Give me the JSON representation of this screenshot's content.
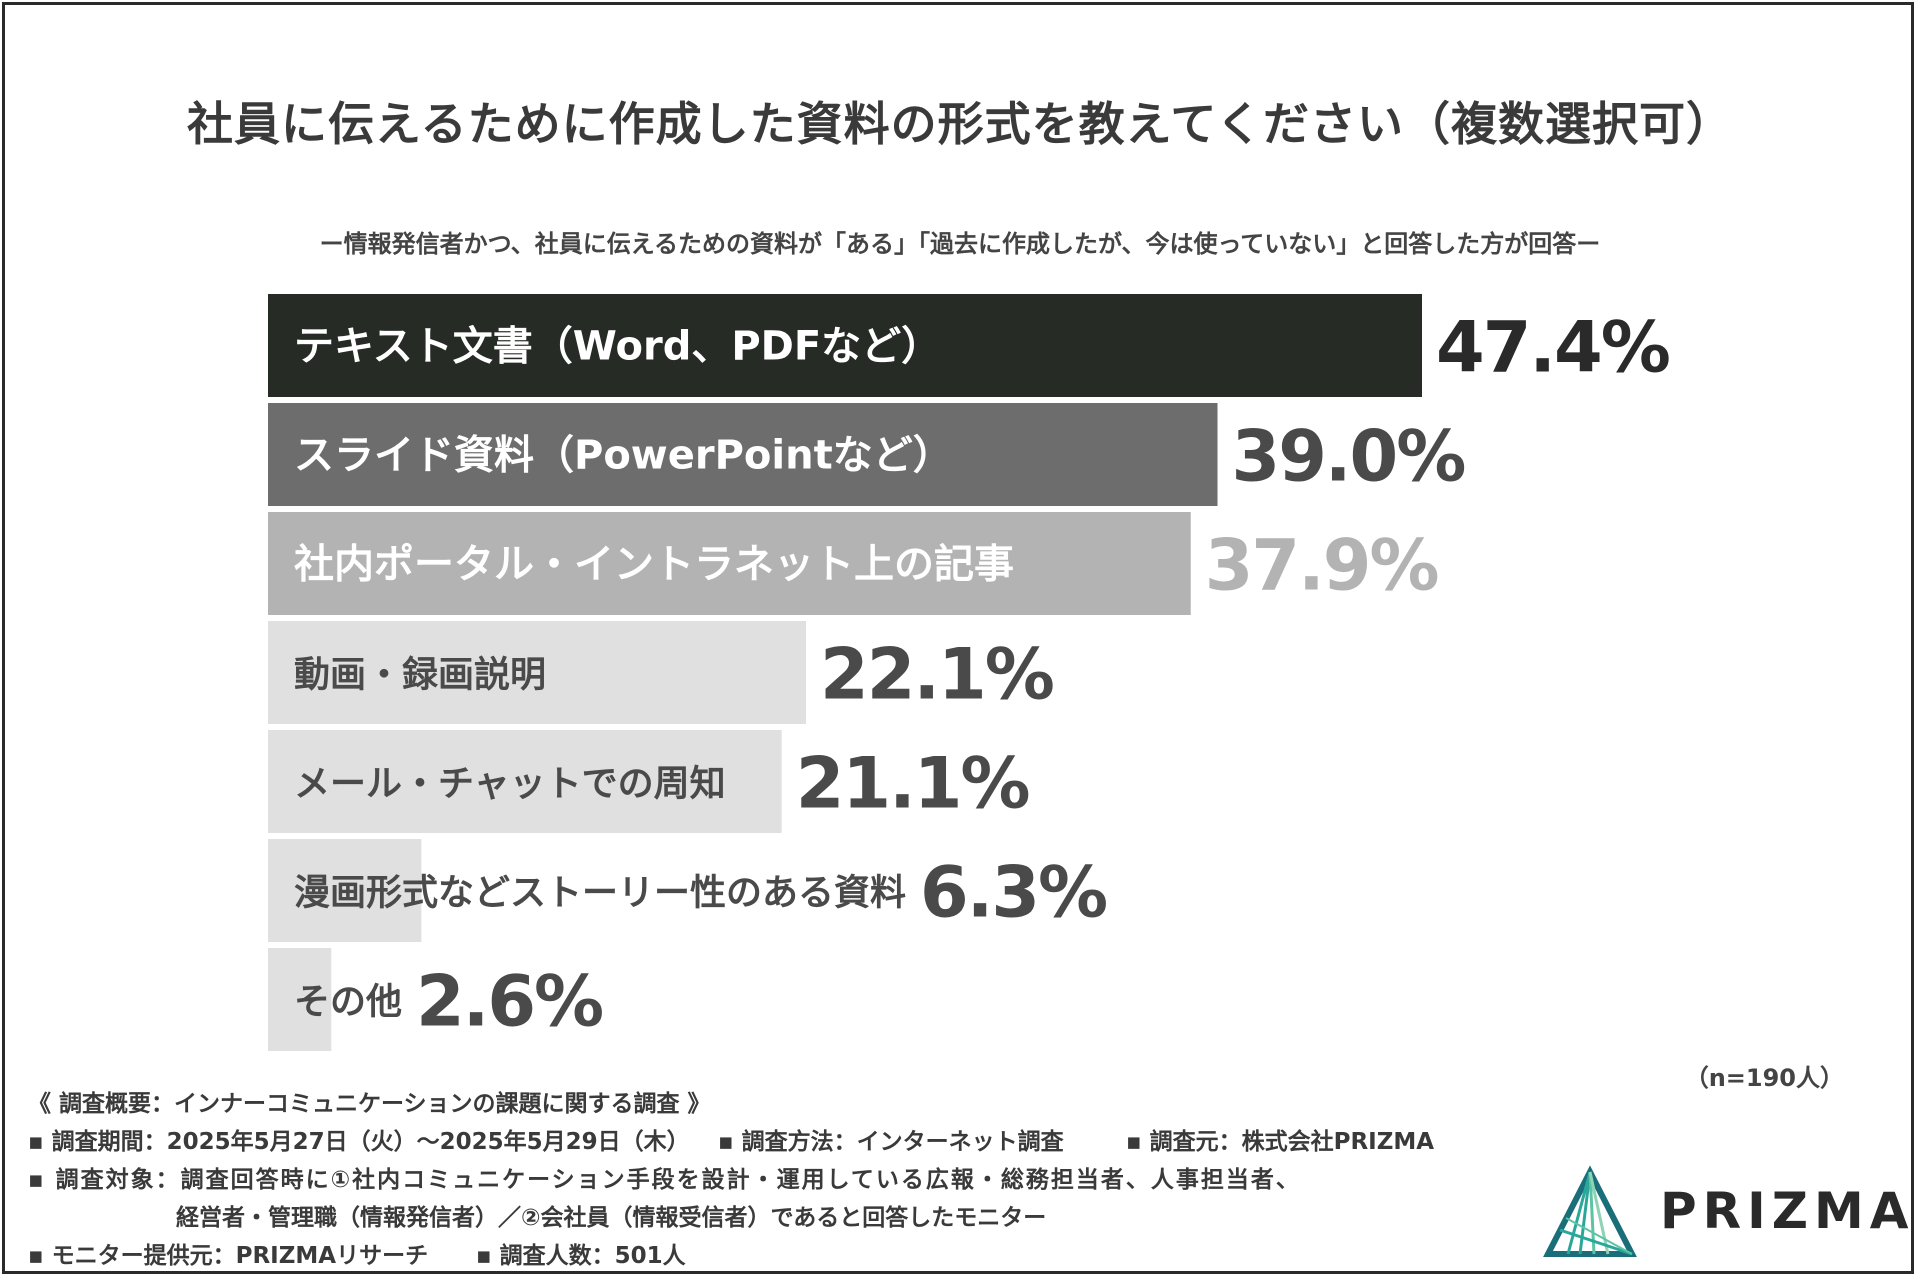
{
  "title": "社員に伝えるために作成した資料の形式を教えてください（複数選択可）",
  "subtitle": "ー情報発信者かつ、社員に伝えるための資料が「ある」「過去に作成したが、今は使っていない」と回答した方が回答ー",
  "n_label": "（n=190人）",
  "chart_data": {
    "type": "bar",
    "orientation": "horizontal",
    "categories": [
      "テキスト文書（Word、PDFなど）",
      "スライド資料（PowerPointなど）",
      "社内ポータル・イントラネット上の記事",
      "動画・録画説明",
      "メール・チャットでの周知",
      "漫画形式などストーリー性のある資料",
      "その他"
    ],
    "values": [
      47.4,
      39.0,
      37.9,
      22.1,
      21.1,
      6.3,
      2.6
    ],
    "value_labels": [
      "47.4%",
      "39.0%",
      "37.9%",
      "22.1%",
      "21.1%",
      "6.3%",
      "2.6%"
    ],
    "colors": [
      "#262b26",
      "#6d6d6d",
      "#b3b3b3",
      "#e0e0e0",
      "#e0e0e0",
      "#e0e0e0",
      "#e0e0e0"
    ],
    "label_colors": [
      "#ffffff",
      "#ffffff",
      "#ffffff",
      "#4a4a4a",
      "#4a4a4a",
      "#4a4a4a",
      "#4a4a4a"
    ],
    "value_colors": [
      "#2a2a2a",
      "#4a4a4a",
      "#b3b3b3",
      "#4a4a4a",
      "#4a4a4a",
      "#4a4a4a",
      "#4a4a4a"
    ],
    "xlim": [
      0,
      47.4
    ]
  },
  "footer": {
    "overview": "《 調査概要：インナーコミュニケーションの課題に関する調査 》",
    "period": "▪ 調査期間：2025年5月27日（火）〜2025年5月29日（木）",
    "method": "▪ 調査方法：インターネット調査",
    "source": "▪ 調査元：株式会社PRIZMA",
    "target_line1": "▪ 調査対象：調査回答時に①社内コミュニケーション手段を設計・運用している広報・総務担当者、人事担当者、",
    "target_line2": "経営者・管理職（情報発信者）／②会社員（情報受信者）であると回答したモニター",
    "provider": "▪ モニター提供元：PRIZMAリサーチ",
    "count": "▪ 調査人数：501人"
  },
  "logo": {
    "text": "PRIZMA",
    "icon": "prizma-triangle-icon",
    "colors": [
      "#1a6e7a",
      "#2aa79b",
      "#8fd3b5"
    ]
  }
}
